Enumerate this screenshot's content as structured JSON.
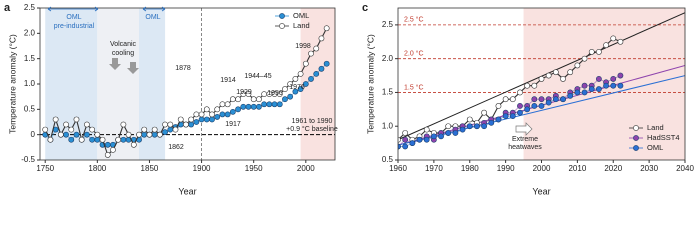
{
  "chart_data": [
    {
      "type": "line",
      "panel_label": "a",
      "x_label": "Year",
      "y_label": "Temperature anomaly (°C)",
      "x": [
        1750,
        1755,
        1760,
        1765,
        1770,
        1775,
        1780,
        1785,
        1790,
        1795,
        1800,
        1805,
        1810,
        1815,
        1820,
        1825,
        1830,
        1835,
        1840,
        1845,
        1850,
        1855,
        1860,
        1865,
        1870,
        1875,
        1880,
        1885,
        1890,
        1895,
        1900,
        1905,
        1910,
        1915,
        1920,
        1925,
        1930,
        1935,
        1940,
        1945,
        1950,
        1955,
        1960,
        1965,
        1970,
        1975,
        1980,
        1985,
        1990,
        1995,
        2000,
        2005,
        2010,
        2015,
        2020
      ],
      "series": [
        {
          "name": "OML",
          "color": "#2a8fd4",
          "marker": "filled",
          "values": [
            0.0,
            -0.1,
            0.1,
            0.0,
            0.0,
            -0.1,
            0.0,
            -0.1,
            0.0,
            -0.1,
            -0.1,
            -0.2,
            -0.2,
            -0.2,
            -0.1,
            -0.1,
            -0.1,
            -0.1,
            -0.1,
            0.0,
            0.0,
            0.0,
            0.0,
            0.05,
            0.1,
            0.15,
            0.2,
            0.2,
            0.2,
            0.25,
            0.3,
            0.3,
            0.3,
            0.35,
            0.4,
            0.4,
            0.45,
            0.5,
            0.55,
            0.55,
            0.55,
            0.55,
            0.6,
            0.6,
            0.6,
            0.6,
            0.7,
            0.75,
            0.85,
            0.9,
            1.0,
            1.1,
            1.2,
            1.3,
            1.4
          ]
        },
        {
          "name": "Land",
          "color": "#333333",
          "marker": "open",
          "values": [
            0.1,
            -0.1,
            0.3,
            0.0,
            0.2,
            0.1,
            0.3,
            -0.1,
            0.2,
            0.1,
            0.0,
            -0.1,
            -0.4,
            -0.3,
            -0.1,
            0.2,
            0.0,
            -0.2,
            0.0,
            0.1,
            0.0,
            0.1,
            0.0,
            0.2,
            0.2,
            0.1,
            0.3,
            0.2,
            0.3,
            0.4,
            0.4,
            0.5,
            0.4,
            0.5,
            0.6,
            0.6,
            0.7,
            0.7,
            0.8,
            0.8,
            0.7,
            0.7,
            0.8,
            0.8,
            0.8,
            0.8,
            0.9,
            1.0,
            1.1,
            1.2,
            1.4,
            1.6,
            1.7,
            1.9,
            2.1
          ]
        }
      ],
      "xlim": [
        1745,
        2028
      ],
      "ylim": [
        -0.5,
        2.5
      ],
      "xticks": [
        1750,
        1800,
        1850,
        1900,
        1950,
        2000
      ],
      "yticks": [
        -0.5,
        0,
        0.5,
        {
          "value": 1,
          "label": "1.0"
        },
        1.5,
        {
          "value": 2,
          "label": "2.0"
        },
        2.5
      ],
      "legend": "upper right",
      "baseline": 0,
      "vline": 1900,
      "shaded_spans": [
        {
          "x": [
            1750,
            1800
          ],
          "color": "#dce8f4"
        },
        {
          "x": [
            1800,
            1840
          ],
          "color": "#eef0f4"
        },
        {
          "x": [
            1840,
            1865
          ],
          "color": "#dce8f4"
        },
        {
          "x": [
            1995,
            2028
          ],
          "color": "#f9e2e0"
        }
      ],
      "annotations": [
        "OML",
        "pre-industrial",
        "Volcanic",
        "cooling",
        "OML",
        "1878",
        "1914",
        "1944–45",
        "1929",
        "1956",
        "1976",
        "1998",
        "1917",
        "1862",
        "1961 to 1990",
        "+0.9 °C baseline"
      ]
    },
    {
      "type": "line",
      "panel_label": "c",
      "x_label": "Year",
      "y_label": "Temperature anomaly (°C)",
      "x": [
        1960,
        1962,
        1964,
        1966,
        1968,
        1970,
        1972,
        1974,
        1976,
        1978,
        1980,
        1982,
        1984,
        1986,
        1988,
        1990,
        1992,
        1994,
        1996,
        1998,
        2000,
        2002,
        2004,
        2006,
        2008,
        2010,
        2012,
        2014,
        2016,
        2018,
        2020,
        2022
      ],
      "series": [
        {
          "name": "Land",
          "color": "#333333",
          "marker": "open",
          "values": [
            0.8,
            0.9,
            0.8,
            0.85,
            0.95,
            0.9,
            0.9,
            1.0,
            1.0,
            1.0,
            1.1,
            1.05,
            1.2,
            1.1,
            1.3,
            1.4,
            1.4,
            1.5,
            1.6,
            1.6,
            1.7,
            1.75,
            1.8,
            1.7,
            1.8,
            1.9,
            2.0,
            2.1,
            2.1,
            2.2,
            2.3,
            2.25
          ]
        },
        {
          "name": "HadSST4",
          "color": "#8e44ad",
          "marker": "filled",
          "values": [
            0.7,
            0.8,
            0.75,
            0.8,
            0.85,
            0.8,
            0.9,
            0.9,
            0.95,
            1.0,
            1.0,
            1.0,
            1.05,
            1.1,
            1.1,
            1.2,
            1.2,
            1.3,
            1.3,
            1.4,
            1.4,
            1.4,
            1.45,
            1.4,
            1.5,
            1.55,
            1.6,
            1.6,
            1.7,
            1.65,
            1.7,
            1.75
          ]
        },
        {
          "name": "OML",
          "color": "#2a6fd4",
          "marker": "filled",
          "values": [
            0.7,
            0.7,
            0.75,
            0.8,
            0.8,
            0.85,
            0.85,
            0.9,
            0.9,
            0.95,
            1.0,
            1.0,
            1.0,
            1.05,
            1.1,
            1.15,
            1.15,
            1.2,
            1.25,
            1.3,
            1.3,
            1.35,
            1.4,
            1.4,
            1.45,
            1.5,
            1.5,
            1.55,
            1.55,
            1.6,
            1.6,
            1.6
          ]
        }
      ],
      "xlim": [
        1960,
        2040
      ],
      "ylim": [
        0.5,
        2.75
      ],
      "xticks": [
        1960,
        1970,
        1980,
        1990,
        2000,
        2010,
        2020,
        2030,
        2040
      ],
      "yticks": [
        0.5,
        {
          "value": 1,
          "label": "1.0"
        },
        1.5,
        {
          "value": 2,
          "label": "2.0"
        },
        2.5
      ],
      "legend": "lower right",
      "reference_lines": [
        {
          "value": 2.5,
          "label": "2.5 °C"
        },
        {
          "value": 2,
          "label": "2.0 °C"
        },
        {
          "value": 1.5,
          "label": "1.5 °C"
        }
      ],
      "reference_color": "#c0392b",
      "trend_lines": [
        {
          "color": "#222222",
          "x": [
            1960,
            2040
          ],
          "y": [
            0.8,
            2.68
          ]
        },
        {
          "color": "#8e44ad",
          "x": [
            1960,
            2040
          ],
          "y": [
            0.72,
            1.9
          ]
        },
        {
          "color": "#2a6fd4",
          "x": [
            1960,
            2040
          ],
          "y": [
            0.72,
            1.75
          ]
        }
      ],
      "shaded_spans": [
        {
          "x": [
            1995,
            2040
          ],
          "color": "#f9e2e0"
        }
      ],
      "annotations": [
        "Extreme",
        "heatwaves"
      ]
    }
  ]
}
